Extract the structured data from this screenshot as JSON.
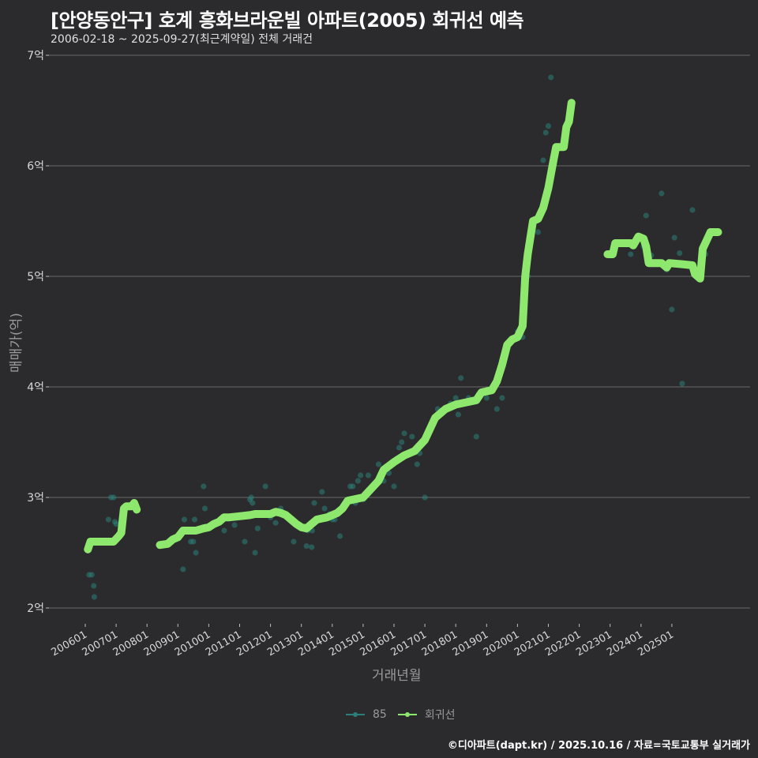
{
  "header": {
    "title": "[안양동안구] 호계 흥화브라운빌 아파트(2005) 회귀선 예측",
    "subtitle": "2006-02-18 ~ 2025-09-27(최근계약일) 전체 거래건"
  },
  "axes": {
    "xlabel": "거래년월",
    "ylabel": "매매가(억)"
  },
  "legend": {
    "items": [
      {
        "label": "85",
        "color": "#2a7f7a"
      },
      {
        "label": "회귀선",
        "color": "#8ee86e"
      }
    ]
  },
  "footer": "©디아파트(dapt.kr) / 2025.10.16 / 자료=국토교통부 실거래가",
  "colors": {
    "background": "#2b2a2c",
    "grid": "#6a6a6a",
    "scatter": "#2a7f7a",
    "regression": "#8ee86e"
  },
  "chart_data": {
    "type": "scatter",
    "title": "[안양동안구] 호계 흥화브라운빌 아파트(2005) 회귀선 예측",
    "subtitle": "2006-02-18 ~ 2025-09-27(최근계약일) 전체 거래건",
    "xlabel": "거래년월",
    "ylabel": "매매가(억)",
    "x_tick_labels": [
      "200601",
      "200701",
      "200801",
      "200901",
      "201001",
      "201101",
      "201201",
      "201301",
      "201401",
      "201501",
      "201601",
      "201701",
      "201801",
      "201901",
      "202001",
      "202101",
      "202201",
      "202301",
      "202401",
      "202501"
    ],
    "y_tick_labels": [
      "2억",
      "3억",
      "4억",
      "5억",
      "6억",
      "7억"
    ],
    "y_tick_values": [
      2,
      3,
      4,
      5,
      6,
      7
    ],
    "ylim": [
      1.9,
      7.1
    ],
    "grid": true,
    "legend_position": "bottom",
    "x_unit": "months since 2006-01",
    "series": [
      {
        "name": "85",
        "type": "scatter",
        "points": [
          [
            1.5,
            2.3
          ],
          [
            2.5,
            2.3
          ],
          [
            3.3,
            2.2
          ],
          [
            3.5,
            2.1
          ],
          [
            9,
            2.8
          ],
          [
            10,
            3.0
          ],
          [
            11,
            3.0
          ],
          [
            11.5,
            2.78
          ],
          [
            12,
            2.76
          ],
          [
            38,
            2.35
          ],
          [
            38.5,
            2.8
          ],
          [
            41,
            2.6
          ],
          [
            42,
            2.6
          ],
          [
            42.5,
            2.8
          ],
          [
            43,
            2.5
          ],
          [
            43.5,
            2.7
          ],
          [
            46,
            3.1
          ],
          [
            46.5,
            2.9
          ],
          [
            50,
            2.75
          ],
          [
            54,
            2.7
          ],
          [
            58,
            2.75
          ],
          [
            62,
            2.6
          ],
          [
            63,
            2.85
          ],
          [
            64,
            2.98
          ],
          [
            64.5,
            3.0
          ],
          [
            65,
            2.95
          ],
          [
            66,
            2.5
          ],
          [
            67,
            2.72
          ],
          [
            70,
            3.1
          ],
          [
            72,
            2.82
          ],
          [
            74,
            2.77
          ],
          [
            76,
            2.9
          ],
          [
            81,
            2.6
          ],
          [
            86,
            2.56
          ],
          [
            86.5,
            2.7
          ],
          [
            88,
            2.55
          ],
          [
            88.2,
            2.7
          ],
          [
            89,
            2.95
          ],
          [
            92,
            3.05
          ],
          [
            93,
            2.9
          ],
          [
            95,
            2.85
          ],
          [
            96,
            2.8
          ],
          [
            97,
            2.8
          ],
          [
            99,
            2.65
          ],
          [
            100,
            2.9
          ],
          [
            103,
            3.1
          ],
          [
            104,
            3.1
          ],
          [
            105,
            2.95
          ],
          [
            106,
            3.15
          ],
          [
            107,
            3.2
          ],
          [
            108,
            2.98
          ],
          [
            110,
            3.2
          ],
          [
            112,
            3.1
          ],
          [
            114,
            3.3
          ],
          [
            116,
            3.15
          ],
          [
            118,
            3.22
          ],
          [
            119,
            3.3
          ],
          [
            120,
            3.1
          ],
          [
            121,
            3.35
          ],
          [
            122,
            3.45
          ],
          [
            123,
            3.5
          ],
          [
            124,
            3.58
          ],
          [
            126,
            3.4
          ],
          [
            127,
            3.55
          ],
          [
            129,
            3.3
          ],
          [
            130,
            3.4
          ],
          [
            132,
            3.0
          ],
          [
            137,
            3.8
          ],
          [
            142,
            3.85
          ],
          [
            144,
            3.9
          ],
          [
            145,
            3.75
          ],
          [
            146,
            4.08
          ],
          [
            149,
            3.9
          ],
          [
            152,
            3.55
          ],
          [
            156,
            3.9
          ],
          [
            160,
            3.8
          ],
          [
            162,
            3.9
          ],
          [
            163,
            4.3
          ],
          [
            165,
            4.4
          ],
          [
            168,
            4.5
          ],
          [
            170,
            4.45
          ],
          [
            172,
            5.0
          ],
          [
            176,
            5.4
          ],
          [
            178,
            6.05
          ],
          [
            179,
            6.3
          ],
          [
            180,
            6.36
          ],
          [
            181,
            6.8
          ],
          [
            212,
            5.2
          ],
          [
            217,
            5.27
          ],
          [
            218,
            5.55
          ],
          [
            220,
            5.19
          ],
          [
            222,
            5.13
          ],
          [
            224,
            5.75
          ],
          [
            226,
            5.06
          ],
          [
            228,
            4.7
          ],
          [
            229,
            5.35
          ],
          [
            231,
            5.21
          ],
          [
            232,
            4.03
          ],
          [
            236,
            5.6
          ],
          [
            241,
            5.2
          ]
        ]
      },
      {
        "name": "회귀선",
        "type": "line",
        "segments": [
          [
            [
              1,
              2.53
            ],
            [
              2,
              2.6
            ],
            [
              8,
              2.6
            ],
            [
              11,
              2.6
            ],
            [
              13,
              2.65
            ],
            [
              14,
              2.68
            ],
            [
              15,
              2.9
            ],
            [
              16,
              2.92
            ],
            [
              18,
              2.92
            ],
            [
              19,
              2.95
            ],
            [
              20,
              2.89
            ]
          ],
          [
            [
              29,
              2.57
            ],
            [
              32,
              2.58
            ],
            [
              34,
              2.62
            ],
            [
              36,
              2.64
            ],
            [
              38,
              2.7
            ],
            [
              43,
              2.7
            ],
            [
              46,
              2.72
            ],
            [
              48,
              2.73
            ],
            [
              50,
              2.76
            ],
            [
              52,
              2.78
            ],
            [
              54,
              2.82
            ],
            [
              56,
              2.82
            ],
            [
              60,
              2.83
            ],
            [
              64,
              2.84
            ],
            [
              66,
              2.85
            ],
            [
              72,
              2.85
            ],
            [
              74,
              2.87
            ],
            [
              76,
              2.86
            ],
            [
              78,
              2.84
            ],
            [
              80,
              2.8
            ],
            [
              82,
              2.76
            ],
            [
              84,
              2.73
            ],
            [
              86,
              2.72
            ],
            [
              88,
              2.76
            ],
            [
              90,
              2.8
            ],
            [
              94,
              2.82
            ],
            [
              98,
              2.86
            ],
            [
              100,
              2.9
            ],
            [
              102,
              2.97
            ],
            [
              108,
              3.0
            ],
            [
              110,
              3.05
            ],
            [
              114,
              3.15
            ],
            [
              116,
              3.25
            ],
            [
              120,
              3.32
            ],
            [
              124,
              3.38
            ],
            [
              128,
              3.42
            ],
            [
              132,
              3.52
            ],
            [
              134,
              3.62
            ],
            [
              136,
              3.72
            ],
            [
              140,
              3.8
            ],
            [
              144,
              3.84
            ],
            [
              148,
              3.86
            ],
            [
              152,
              3.88
            ],
            [
              154,
              3.95
            ],
            [
              158,
              3.97
            ],
            [
              160,
              4.05
            ],
            [
              162,
              4.2
            ],
            [
              164,
              4.38
            ],
            [
              166,
              4.43
            ],
            [
              168,
              4.45
            ],
            [
              170,
              4.55
            ],
            [
              171,
              5.0
            ],
            [
              172,
              5.2
            ],
            [
              174,
              5.5
            ],
            [
              176,
              5.52
            ],
            [
              178,
              5.62
            ],
            [
              180,
              5.8
            ],
            [
              182,
              6.05
            ],
            [
              183,
              6.17
            ],
            [
              186,
              6.17
            ],
            [
              187,
              6.35
            ],
            [
              188,
              6.4
            ],
            [
              189,
              6.57
            ]
          ],
          [
            [
              203,
              5.2
            ],
            [
              205,
              5.2
            ],
            [
              206,
              5.3
            ],
            [
              212,
              5.3
            ],
            [
              213,
              5.28
            ],
            [
              215,
              5.36
            ],
            [
              217,
              5.34
            ],
            [
              218,
              5.27
            ],
            [
              219,
              5.12
            ],
            [
              224,
              5.12
            ],
            [
              226,
              5.08
            ],
            [
              227,
              5.12
            ],
            [
              232,
              5.11
            ],
            [
              236,
              5.1
            ],
            [
              237,
              5.02
            ],
            [
              238,
              5.0
            ],
            [
              239,
              4.98
            ],
            [
              240,
              5.25
            ],
            [
              241,
              5.3
            ],
            [
              243,
              5.4
            ],
            [
              246,
              5.4
            ]
          ]
        ]
      }
    ]
  }
}
